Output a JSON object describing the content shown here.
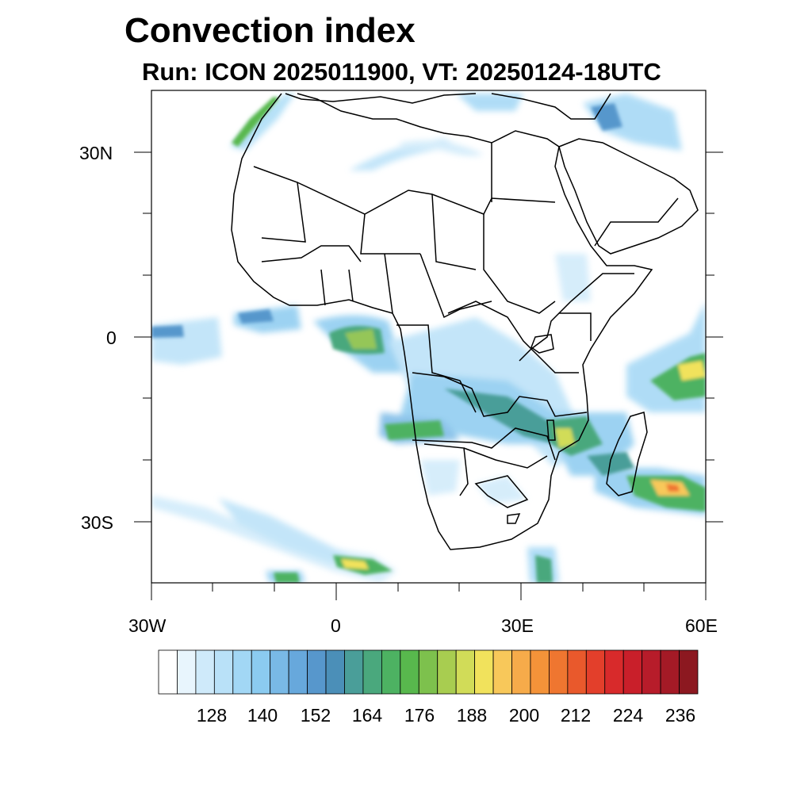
{
  "title": "Convection index",
  "subtitle": "Run: ICON 2025011900,  VT: 20250124-18UTC",
  "axes": {
    "lat_labels": [
      "30N",
      "0",
      "30S"
    ],
    "lon_labels": [
      "30W",
      "0",
      "30E",
      "60E"
    ]
  },
  "colorbar": {
    "labels": [
      "128",
      "140",
      "152",
      "164",
      "176",
      "188",
      "200",
      "212",
      "224",
      "236"
    ],
    "colors": [
      "#ffffff",
      "#e8f5fd",
      "#cfeafa",
      "#b9e1f8",
      "#a2d7f5",
      "#8bcbf0",
      "#79b9e6",
      "#67a8dc",
      "#5797cc",
      "#4b8fb8",
      "#4a9e99",
      "#4aa87d",
      "#4db262",
      "#58b84d",
      "#7dc14d",
      "#a8cd50",
      "#d1dc58",
      "#f1e25c",
      "#f8c85a",
      "#f6ab4a",
      "#f49339",
      "#ef7630",
      "#e9592c",
      "#e33f2b",
      "#d82a2b",
      "#c91f2a",
      "#b71c2a",
      "#a41a26",
      "#8c1820"
    ]
  },
  "map": {
    "land_color": "#ffffff",
    "boundary_color": "#000000"
  }
}
